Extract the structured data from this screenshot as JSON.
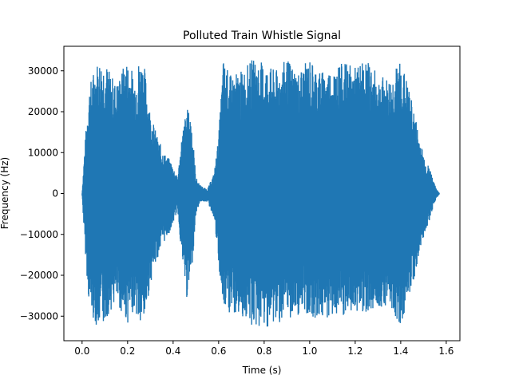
{
  "chart_data": {
    "type": "line",
    "title": "Polluted Train Whistle Signal",
    "xlabel": "Time (s)",
    "ylabel": "Frequency (Hz)",
    "xlim": [
      -0.08,
      1.66
    ],
    "ylim": [
      -36000,
      36000
    ],
    "xticks": [
      0.0,
      0.2,
      0.4,
      0.6,
      0.8,
      1.0,
      1.2,
      1.4,
      1.6
    ],
    "xtick_labels": [
      "0.0",
      "0.2",
      "0.4",
      "0.6",
      "0.8",
      "1.0",
      "1.2",
      "1.4",
      "1.6"
    ],
    "yticks": [
      -30000,
      -20000,
      -10000,
      0,
      10000,
      20000,
      30000
    ],
    "ytick_labels": [
      "−30000",
      "−20000",
      "−10000",
      "0",
      "10000",
      "20000",
      "30000"
    ],
    "grid": false,
    "color": "#1f77b4",
    "series": [
      {
        "x": [
          0.0,
          0.01,
          0.02,
          0.03,
          0.05,
          0.07,
          0.1,
          0.12,
          0.15,
          0.18,
          0.2,
          0.23,
          0.25,
          0.27,
          0.3,
          0.33,
          0.36,
          0.39,
          0.42,
          0.44,
          0.46,
          0.48,
          0.5,
          0.52,
          0.55,
          0.58,
          0.6,
          0.62,
          0.65,
          0.7,
          0.75,
          0.8,
          0.85,
          0.9,
          0.95,
          1.0,
          1.05,
          1.1,
          1.15,
          1.2,
          1.25,
          1.3,
          1.35,
          1.4,
          1.43,
          1.46,
          1.49,
          1.51,
          1.53,
          1.55,
          1.57
        ],
        "upper": [
          0,
          10000,
          18000,
          26000,
          30000,
          33000,
          33000,
          30000,
          27000,
          31000,
          33000,
          29000,
          33000,
          33000,
          20000,
          14000,
          10000,
          8000,
          4000,
          15000,
          21000,
          19000,
          4000,
          2000,
          1000,
          5000,
          14000,
          33000,
          29000,
          30000,
          33000,
          32000,
          30000,
          33000,
          30000,
          33000,
          30000,
          31000,
          32000,
          31000,
          33000,
          29000,
          28000,
          33000,
          27000,
          20000,
          12000,
          8000,
          6000,
          2000,
          0
        ],
        "lower": [
          0,
          -11000,
          -19000,
          -27000,
          -31000,
          -33000,
          -32000,
          -29000,
          -27000,
          -30000,
          -32000,
          -28000,
          -33000,
          -33000,
          -22000,
          -16000,
          -12000,
          -9000,
          -4000,
          -17000,
          -26000,
          -21000,
          -5000,
          -2000,
          -2000,
          -6000,
          -18000,
          -29000,
          -30000,
          -30000,
          -33000,
          -33000,
          -32000,
          -31000,
          -30000,
          -30000,
          -31000,
          -30000,
          -31000,
          -29000,
          -29000,
          -28000,
          -27000,
          -33000,
          -26000,
          -21000,
          -13000,
          -9000,
          -6000,
          -2000,
          0
        ]
      }
    ]
  }
}
